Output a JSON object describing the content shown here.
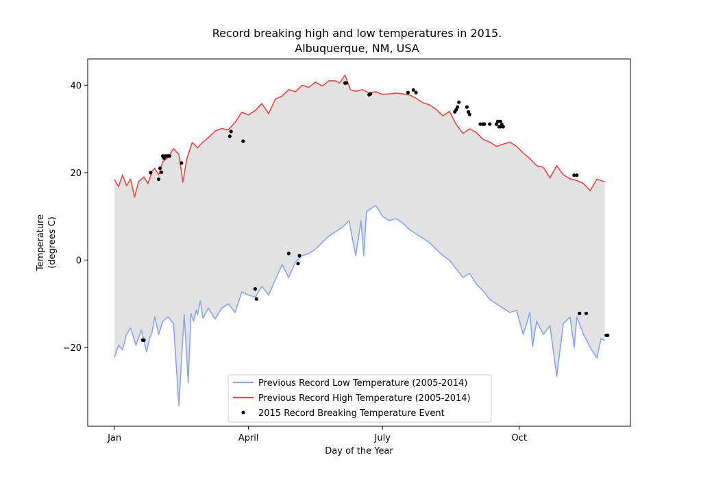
{
  "chart_data": {
    "type": "line",
    "title": "Record breaking high and low temperatures in 2015.",
    "subtitle": "Albuquerque, NM, USA",
    "xlabel": "Day of the Year",
    "ylabel_line1": "Temperature",
    "ylabel_line2": "(degrees C)",
    "xlim": [
      -20,
      385
    ],
    "ylim": [
      -38,
      46
    ],
    "x_ticks": [
      {
        "value": 0,
        "label": "Jan"
      },
      {
        "value": 100,
        "label": "April"
      },
      {
        "value": 200,
        "label": "July"
      },
      {
        "value": 302,
        "label": "Oct"
      }
    ],
    "y_ticks": [
      {
        "value": 40,
        "label": "40"
      },
      {
        "value": 20,
        "label": "20"
      },
      {
        "value": 0,
        "label": "0"
      },
      {
        "value": -20,
        "label": "−20"
      }
    ],
    "grid": false,
    "legend_position": "lower-center",
    "fill_color": "#e2e2e2",
    "series": [
      {
        "name": "Previous Record Low Temperature (2005-2014)",
        "color": "#8ba4f0",
        "x": [
          0,
          3,
          6,
          9,
          12,
          16,
          20,
          24,
          26,
          28,
          30,
          33,
          36,
          40,
          44,
          48,
          52,
          55,
          57,
          59,
          61,
          62,
          64,
          66,
          70,
          75,
          80,
          85,
          90,
          95,
          100,
          105,
          110,
          115,
          120,
          125,
          130,
          135,
          140,
          145,
          150,
          155,
          160,
          165,
          170,
          175,
          180,
          184,
          186,
          188,
          190,
          195,
          200,
          205,
          210,
          215,
          220,
          225,
          230,
          235,
          240,
          245,
          250,
          255,
          260,
          265,
          270,
          275,
          280,
          285,
          290,
          295,
          300,
          305,
          310,
          312,
          315,
          320,
          325,
          330,
          335,
          340,
          343,
          345,
          350,
          355,
          360,
          363,
          366
        ],
        "y": [
          -22.2,
          -19.5,
          -20.5,
          -17,
          -15.5,
          -19.5,
          -16,
          -21,
          -18,
          -16.5,
          -13,
          -17,
          -14,
          -13,
          -14.5,
          -33.3,
          -12.5,
          -28,
          -12.2,
          -14,
          -11.4,
          -12.5,
          -9.3,
          -13.3,
          -11,
          -13.5,
          -11,
          -10,
          -12,
          -7.3,
          -8,
          -8.5,
          -6,
          -8,
          -4.5,
          -1,
          -4,
          -0.5,
          1,
          1.5,
          2.5,
          4,
          5.5,
          6.5,
          7.5,
          9,
          1,
          9,
          1,
          11,
          11.5,
          12.5,
          10,
          9,
          9.5,
          8.5,
          7,
          6,
          5,
          4,
          2.5,
          1,
          0,
          -2,
          -4,
          -3,
          -5.5,
          -7,
          -9,
          -10,
          -11,
          -12,
          -11.5,
          -17,
          -12,
          -19.7,
          -14,
          -17,
          -15,
          -26.6,
          -14.5,
          -13,
          -20,
          -13,
          -17,
          -20,
          -22.4,
          -18,
          -18.4
        ]
      },
      {
        "name": "Previous Record High Temperature (2005-2014)",
        "color": "#f04545",
        "x": [
          0,
          3,
          6,
          9,
          12,
          15,
          18,
          22,
          25,
          28,
          30,
          33,
          36,
          40,
          44,
          48,
          50,
          51,
          54,
          58,
          62,
          66,
          70,
          75,
          80,
          85,
          90,
          95,
          100,
          105,
          110,
          115,
          120,
          125,
          130,
          135,
          140,
          145,
          150,
          155,
          160,
          165,
          168,
          172,
          176,
          180,
          185,
          190,
          195,
          200,
          205,
          210,
          215,
          220,
          225,
          230,
          235,
          240,
          245,
          250,
          255,
          260,
          265,
          270,
          275,
          280,
          285,
          290,
          295,
          300,
          305,
          310,
          315,
          320,
          325,
          330,
          335,
          340,
          345,
          350,
          355,
          360,
          366
        ],
        "y": [
          18.4,
          16.8,
          19.5,
          17,
          18.5,
          14.4,
          18,
          19,
          17.5,
          20.3,
          21,
          19.5,
          22.5,
          23.5,
          25.5,
          24.2,
          20.1,
          17.8,
          23.2,
          26.9,
          25.7,
          27,
          28,
          29.5,
          30.1,
          29.8,
          31.5,
          33.8,
          33.2,
          34.2,
          35.8,
          33.5,
          36.8,
          37.5,
          39,
          38.5,
          40,
          39.5,
          40.7,
          39.8,
          41,
          41,
          40.5,
          42.3,
          39,
          38.6,
          39,
          38.2,
          38.5,
          37.9,
          38,
          38.2,
          38,
          37.8,
          37,
          36,
          35.5,
          34.5,
          33,
          34,
          31,
          29,
          30,
          29.2,
          27.6,
          27,
          26,
          26.5,
          27,
          26,
          24.5,
          23.2,
          21.6,
          21.2,
          18.8,
          21.6,
          19.5,
          18.6,
          18.2,
          17.5,
          15.9,
          18.5,
          17.9
        ]
      },
      {
        "name": "2015 Record Breaking Temperature Event",
        "color": "#000000",
        "type": "scatter",
        "x": [
          21,
          22,
          27,
          33,
          34,
          35,
          36,
          37,
          38,
          39,
          40,
          41,
          50,
          86,
          87,
          96,
          105,
          106,
          130,
          137,
          138,
          172,
          173,
          190,
          191,
          219,
          223,
          225,
          254,
          255,
          256,
          257,
          263,
          264,
          265,
          273,
          275,
          276,
          280,
          285,
          286,
          287,
          288,
          290,
          288,
          289,
          290,
          343,
          345,
          347,
          352,
          367,
          368
        ],
        "y": [
          -18.3,
          -18.3,
          20,
          18.5,
          21,
          20.1,
          23.8,
          23.3,
          23.8,
          23.8,
          23.8,
          23.8,
          22.2,
          28.3,
          29.4,
          27.2,
          -6.6,
          -8.9,
          1.5,
          -0.8,
          1,
          40.5,
          40.5,
          37.8,
          38,
          38.3,
          38.9,
          38.3,
          33.9,
          34.4,
          35,
          36.1,
          35,
          33.9,
          33.3,
          31.1,
          31.1,
          31.1,
          31.1,
          31.1,
          31.7,
          30.5,
          31.7,
          30.5,
          30.5,
          31,
          30.5,
          19.4,
          19.4,
          -12.2,
          -12.2,
          -17.2,
          -17.2
        ]
      }
    ]
  },
  "legend": {
    "low": "Previous Record Low Temperature (2005-2014)",
    "high": "Previous Record High Temperature (2005-2014)",
    "events": "2015 Record Breaking Temperature Event"
  }
}
